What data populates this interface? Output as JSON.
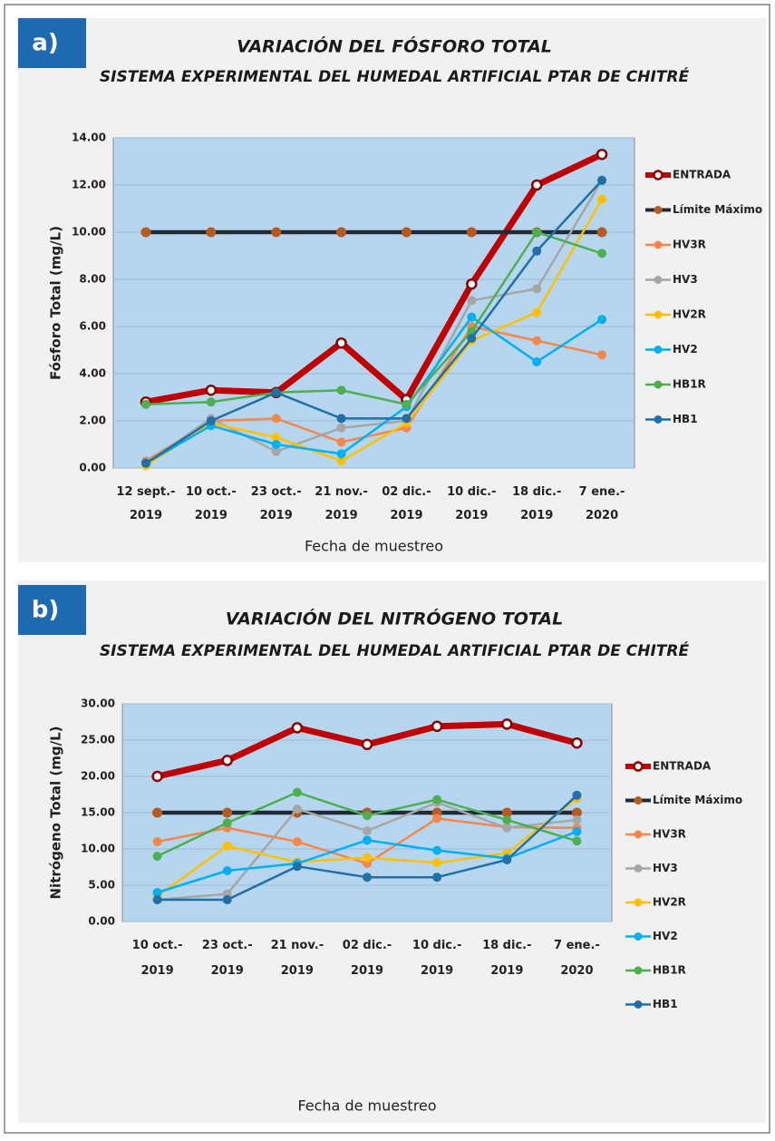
{
  "chart_data": [
    {
      "type": "line",
      "panel_label": "a)",
      "title": "VARIACIÓN DEL FÓSFORO TOTAL",
      "subtitle": "SISTEMA EXPERIMENTAL DEL HUMEDAL ARTIFICIAL PTAR DE CHITRÉ",
      "y_label": "Fósforo Total (mg/L)",
      "x_label": "Fecha de muestreo",
      "categories": [
        "12 sept.- 2019",
        "10 oct.- 2019",
        "23 oct.- 2019",
        "21 nov.- 2019",
        "02 dic.- 2019",
        "10 dic.- 2019",
        "18 dic.- 2019",
        "7 ene.- 2020"
      ],
      "ylim": [
        0,
        14
      ],
      "yticks": [
        {
          "value": 0,
          "label": "0.00"
        },
        {
          "value": 2,
          "label": "2.00"
        },
        {
          "value": 4,
          "label": "4.00"
        },
        {
          "value": 6,
          "label": "6.00"
        },
        {
          "value": 8,
          "label": "8.00"
        },
        {
          "value": 10,
          "label": "10.00"
        },
        {
          "value": 12,
          "label": "12.00"
        },
        {
          "value": 14,
          "label": "14.00"
        }
      ],
      "grid": true,
      "legend": "right",
      "series": [
        {
          "name": "ENTRADA",
          "color": "#c00000",
          "values": [
            2.8,
            3.3,
            3.2,
            5.3,
            2.9,
            7.8,
            12.0,
            13.3
          ]
        },
        {
          "name": "Límite Máximo",
          "color": "#1f2a36",
          "marker_color": "#b85a1e",
          "values": [
            10,
            10,
            10,
            10,
            10,
            10,
            10,
            10
          ]
        },
        {
          "name": "HV3R",
          "color": "#f5874a",
          "values": [
            0.3,
            2.0,
            2.1,
            1.1,
            1.7,
            6.0,
            5.4,
            4.8
          ]
        },
        {
          "name": "HV3",
          "color": "#a6a6a6",
          "values": [
            0.2,
            2.1,
            0.7,
            1.7,
            2.0,
            7.1,
            7.6,
            12.2
          ]
        },
        {
          "name": "HV2R",
          "color": "#ffc000",
          "values": [
            0.1,
            1.9,
            1.3,
            0.3,
            1.9,
            5.4,
            6.6,
            11.4
          ]
        },
        {
          "name": "HV2",
          "color": "#00b0f0",
          "values": [
            0.2,
            1.8,
            1.0,
            0.6,
            2.6,
            6.4,
            4.5,
            6.3
          ]
        },
        {
          "name": "HB1R",
          "color": "#4caf50",
          "values": [
            2.7,
            2.8,
            3.2,
            3.3,
            2.7,
            5.8,
            10.0,
            9.1
          ]
        },
        {
          "name": "HB1",
          "color": "#1f6fa8",
          "values": [
            0.2,
            2.0,
            3.2,
            2.1,
            2.1,
            5.5,
            9.2,
            12.2
          ]
        }
      ]
    },
    {
      "type": "line",
      "panel_label": "b)",
      "title": "VARIACIÓN DEL NITRÓGENO TOTAL",
      "subtitle": "SISTEMA EXPERIMENTAL DEL HUMEDAL ARTIFICIAL PTAR DE CHITRÉ",
      "y_label": "Nitrógeno Total (mg/L)",
      "x_label": "Fecha de muestreo",
      "categories": [
        "10 oct.- 2019",
        "23 oct.- 2019",
        "21 nov.- 2019",
        "02 dic.- 2019",
        "10 dic.- 2019",
        "18 dic.- 2019",
        "7 ene.- 2020"
      ],
      "ylim": [
        0,
        30
      ],
      "yticks": [
        {
          "value": 0,
          "label": "0.00"
        },
        {
          "value": 5,
          "label": "5.00"
        },
        {
          "value": 10,
          "label": "10.00"
        },
        {
          "value": 15,
          "label": "15.00"
        },
        {
          "value": 20,
          "label": "20.00"
        },
        {
          "value": 25,
          "label": "25.00"
        },
        {
          "value": 30,
          "label": "30.00"
        }
      ],
      "grid": true,
      "legend": "right",
      "series": [
        {
          "name": "ENTRADA",
          "color": "#c00000",
          "values": [
            20.0,
            22.2,
            26.7,
            24.4,
            26.9,
            27.2,
            24.6
          ]
        },
        {
          "name": "Límite Máximo",
          "color": "#1f2a36",
          "marker_color": "#b85a1e",
          "values": [
            15,
            15,
            15,
            15,
            15,
            15,
            15
          ]
        },
        {
          "name": "HV3R",
          "color": "#f5874a",
          "values": [
            11.0,
            12.9,
            11.0,
            8.0,
            14.2,
            13.0,
            12.9
          ]
        },
        {
          "name": "HV3",
          "color": "#a6a6a6",
          "values": [
            3.0,
            3.8,
            15.5,
            12.5,
            16.4,
            12.9,
            14.0
          ]
        },
        {
          "name": "HV2R",
          "color": "#ffc000",
          "values": [
            3.5,
            10.4,
            8.2,
            8.8,
            8.1,
            9.4,
            17.0
          ]
        },
        {
          "name": "HV2",
          "color": "#00b0f0",
          "values": [
            4.0,
            7.0,
            8.0,
            11.2,
            9.8,
            8.7,
            12.4
          ]
        },
        {
          "name": "HB1R",
          "color": "#4caf50",
          "values": [
            9.0,
            13.6,
            17.8,
            14.6,
            16.8,
            14.0,
            11.1
          ]
        },
        {
          "name": "HB1",
          "color": "#1f6fa8",
          "values": [
            3.0,
            3.0,
            7.6,
            6.1,
            6.1,
            8.5,
            17.4
          ]
        }
      ]
    }
  ]
}
